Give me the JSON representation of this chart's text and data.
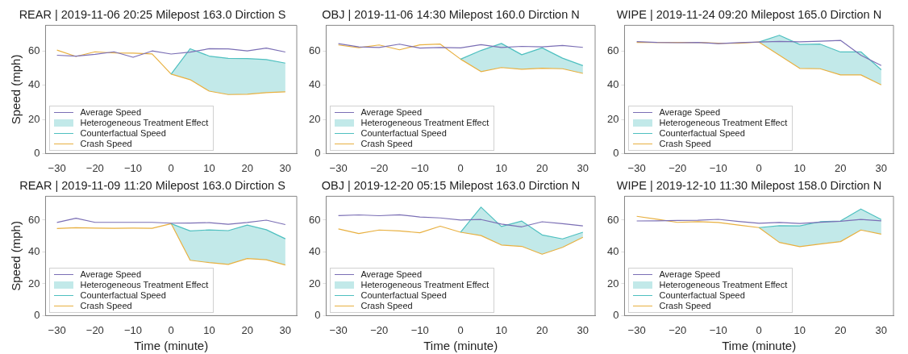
{
  "chart_data": [
    {
      "type": "line",
      "title": "REAR | 2019-11-06 20:25 Milepost 163.0 Dirction S",
      "ylabel": "Speed (mph)",
      "annotations": [
        "Heterogeneous Treatment Effect"
      ],
      "x": [
        -30,
        -25,
        -20,
        -15,
        -10,
        -5,
        0,
        5,
        10,
        15,
        20,
        25,
        30
      ],
      "xlim": [
        -33,
        33
      ],
      "xticks": [
        -30,
        -20,
        -10,
        0,
        10,
        20,
        30
      ],
      "ylim": [
        0,
        75
      ],
      "yticks": [
        0,
        20,
        40,
        60
      ],
      "grid": false,
      "legend": "bottom left",
      "series": [
        {
          "name": "Average Speed",
          "color": "#7b6fb5",
          "values": [
            57.5,
            57,
            58,
            59.5,
            56.3,
            60,
            58.2,
            59.3,
            61.3,
            61.2,
            60,
            61.7,
            59.4
          ]
        },
        {
          "name": "Counterfactual Speed",
          "color": "#4fc0c0",
          "x": [
            0,
            5,
            10,
            15,
            20,
            25,
            30
          ],
          "values": [
            46.5,
            61.3,
            57,
            55.7,
            55.6,
            55,
            52.9
          ],
          "lower": [
            46.5,
            43.2,
            36.5,
            34.5,
            34.7,
            35.6,
            36.1
          ],
          "upper": [
            46.5,
            61.3,
            57,
            55.7,
            55.6,
            55,
            52.9
          ]
        },
        {
          "name": "Crash Speed",
          "color": "#e8b040",
          "values": [
            60.5,
            56.8,
            59.5,
            58.8,
            58.7,
            58.3,
            46.5,
            43.2,
            36.5,
            34.5,
            34.7,
            35.6,
            36.1
          ]
        }
      ]
    },
    {
      "type": "line",
      "title": "OBJ | 2019-11-06 14:30 Milepost 160.0 Dirction N",
      "annotations": [
        "Heterogeneous Treatment Effect"
      ],
      "x": [
        -30,
        -25,
        -20,
        -15,
        -10,
        -5,
        0,
        5,
        10,
        15,
        20,
        25,
        30
      ],
      "xlim": [
        -33,
        33
      ],
      "xticks": [
        -30,
        -20,
        -10,
        0,
        10,
        20,
        30
      ],
      "ylim": [
        0,
        75
      ],
      "yticks": [
        0,
        20,
        40,
        60
      ],
      "grid": false,
      "legend": "bottom left",
      "series": [
        {
          "name": "Average Speed",
          "color": "#7b6fb5",
          "values": [
            64.3,
            62.4,
            62,
            64,
            61.7,
            62,
            61.8,
            63.7,
            62,
            62.7,
            62.4,
            63.2,
            62.1
          ]
        },
        {
          "name": "Counterfactual Speed",
          "color": "#4fc0c0",
          "x": [
            0,
            5,
            10,
            15,
            20,
            25,
            30
          ],
          "values": [
            55.2,
            60.3,
            64.4,
            57.8,
            61.8,
            55.8,
            51.4
          ],
          "lower": [
            55.2,
            47.9,
            50.3,
            49.3,
            49.9,
            49.6,
            46.9
          ],
          "upper": [
            55.2,
            60.3,
            64.4,
            57.8,
            61.8,
            55.8,
            51.4
          ]
        },
        {
          "name": "Crash Speed",
          "color": "#e8b040",
          "values": [
            63.5,
            61.9,
            63.5,
            60.7,
            63.6,
            64,
            55.2,
            47.9,
            50.3,
            49.3,
            49.9,
            49.6,
            46.9
          ]
        }
      ]
    },
    {
      "type": "line",
      "title": "WIPE | 2019-11-24 09:20 Milepost 165.0 Dirction N",
      "annotations": [
        "Heterogeneous Treatment Effect"
      ],
      "x": [
        -30,
        -25,
        -20,
        -15,
        -10,
        -5,
        0,
        5,
        10,
        15,
        20,
        25,
        30
      ],
      "xlim": [
        -33,
        33
      ],
      "xticks": [
        -30,
        -20,
        -10,
        0,
        10,
        20,
        30
      ],
      "ylim": [
        0,
        75
      ],
      "yticks": [
        0,
        20,
        40,
        60
      ],
      "grid": false,
      "legend": "bottom left",
      "series": [
        {
          "name": "Average Speed",
          "color": "#7b6fb5",
          "values": [
            65.5,
            65,
            64.8,
            65,
            64.3,
            64.9,
            65.2,
            65.6,
            65.3,
            65.7,
            66.2,
            57.5,
            51.5
          ]
        },
        {
          "name": "Counterfactual Speed",
          "color": "#4fc0c0",
          "x": [
            0,
            5,
            10,
            15,
            20,
            25,
            30
          ],
          "values": [
            65.2,
            69.2,
            63.8,
            64,
            59.4,
            59.5,
            49
          ],
          "lower": [
            65.2,
            57.5,
            49.8,
            49.6,
            46,
            46,
            40.2
          ],
          "upper": [
            65.2,
            69.2,
            63.8,
            64,
            59.4,
            59.5,
            49
          ]
        },
        {
          "name": "Crash Speed",
          "color": "#e8b040",
          "values": [
            65,
            65,
            65,
            65,
            64.5,
            64.5,
            65.2,
            57.5,
            49.8,
            49.6,
            46,
            46,
            40.2
          ]
        }
      ]
    },
    {
      "type": "line",
      "title": "REAR | 2019-11-09 11:20 Milepost 163.0 Dirction S",
      "ylabel": "Speed (mph)",
      "xlabel": "Time (minute)",
      "annotations": [
        "Heterogeneous Treatment Effect"
      ],
      "x": [
        -30,
        -25,
        -20,
        -15,
        -10,
        -5,
        0,
        5,
        10,
        15,
        20,
        25,
        30
      ],
      "xlim": [
        -33,
        33
      ],
      "xticks": [
        -30,
        -20,
        -10,
        0,
        10,
        20,
        30
      ],
      "ylim": [
        0,
        75
      ],
      "yticks": [
        0,
        20,
        40,
        60
      ],
      "grid": false,
      "legend": "bottom left",
      "series": [
        {
          "name": "Average Speed",
          "color": "#7b6fb5",
          "values": [
            58.5,
            61.2,
            58.6,
            58.6,
            58.6,
            58.6,
            58.1,
            58.2,
            58.4,
            57.4,
            58.5,
            60,
            57.2
          ]
        },
        {
          "name": "Counterfactual Speed",
          "color": "#4fc0c0",
          "x": [
            0,
            5,
            10,
            15,
            20,
            25,
            30
          ],
          "values": [
            57.8,
            53.2,
            53.9,
            53.4,
            56.9,
            54,
            48.3
          ],
          "lower": [
            57.8,
            34.8,
            33.3,
            32.2,
            35.9,
            35.1,
            31.8
          ],
          "upper": [
            57.8,
            53.2,
            53.9,
            53.4,
            56.9,
            54,
            48.3
          ]
        },
        {
          "name": "Crash Speed",
          "color": "#e8b040",
          "values": [
            54.7,
            55.2,
            55,
            54.9,
            55,
            54.9,
            57.8,
            34.8,
            33.3,
            32.2,
            35.9,
            35.1,
            31.8
          ]
        }
      ]
    },
    {
      "type": "line",
      "title": "OBJ | 2019-12-20 05:15 Milepost 163.0 Dirction N",
      "xlabel": "Time (minute)",
      "annotations": [
        "Heterogeneous Treatment Effect"
      ],
      "x": [
        -30,
        -25,
        -20,
        -15,
        -10,
        -5,
        0,
        5,
        10,
        15,
        20,
        25,
        30
      ],
      "xlim": [
        -33,
        33
      ],
      "xticks": [
        -30,
        -20,
        -10,
        0,
        10,
        20,
        30
      ],
      "ylim": [
        0,
        75
      ],
      "yticks": [
        0,
        20,
        40,
        60
      ],
      "grid": false,
      "legend": "bottom left",
      "series": [
        {
          "name": "Average Speed",
          "color": "#7b6fb5",
          "values": [
            62.9,
            63.3,
            62.8,
            63.4,
            62,
            61.4,
            60.1,
            60.4,
            57.5,
            55.8,
            59,
            57.8,
            56.4
          ]
        },
        {
          "name": "Counterfactual Speed",
          "color": "#4fc0c0",
          "x": [
            0,
            5,
            10,
            15,
            20,
            25,
            30
          ],
          "values": [
            52.4,
            68.2,
            56,
            59.4,
            50.7,
            48.2,
            52.4
          ],
          "lower": [
            52.4,
            50.3,
            44.4,
            43.5,
            38.6,
            42.9,
            49.2
          ],
          "upper": [
            52.4,
            68.2,
            56,
            59.4,
            50.7,
            48.2,
            52.4
          ]
        },
        {
          "name": "Crash Speed",
          "color": "#e8b040",
          "values": [
            54.5,
            51.6,
            53.8,
            53.2,
            52.1,
            56.2,
            52.4,
            50.3,
            44.4,
            43.5,
            38.6,
            42.9,
            49.2
          ]
        }
      ]
    },
    {
      "type": "line",
      "title": "WIPE | 2019-12-10 11:30 Milepost 158.0 Dirction N",
      "xlabel": "Time (minute)",
      "annotations": [
        "Heterogeneous Treatment Effect"
      ],
      "x": [
        -30,
        -25,
        -20,
        -15,
        -10,
        -5,
        0,
        5,
        10,
        15,
        20,
        25,
        30
      ],
      "xlim": [
        -33,
        33
      ],
      "xticks": [
        -30,
        -20,
        -10,
        0,
        10,
        20,
        30
      ],
      "ylim": [
        0,
        75
      ],
      "yticks": [
        0,
        20,
        40,
        60
      ],
      "grid": false,
      "legend": "bottom left",
      "series": [
        {
          "name": "Average Speed",
          "color": "#7b6fb5",
          "values": [
            59.5,
            59.6,
            59.8,
            59.9,
            60.5,
            59.2,
            58,
            58.5,
            57.9,
            58.7,
            59.3,
            60.4,
            59.6
          ]
        },
        {
          "name": "Counterfactual Speed",
          "color": "#4fc0c0",
          "x": [
            0,
            5,
            10,
            15,
            20,
            25,
            30
          ],
          "values": [
            55.3,
            56.5,
            56.4,
            59,
            59.5,
            67,
            60.4
          ],
          "lower": [
            55.3,
            46,
            43.3,
            45,
            46.5,
            53.8,
            51.2
          ],
          "upper": [
            55.3,
            56.5,
            56.4,
            59,
            59.5,
            67,
            60.4
          ]
        },
        {
          "name": "Crash Speed",
          "color": "#e8b040",
          "values": [
            62.4,
            60.6,
            58.6,
            59,
            58.5,
            56.9,
            55.3,
            46,
            43.3,
            45,
            46.5,
            53.8,
            51.2
          ]
        }
      ]
    }
  ]
}
